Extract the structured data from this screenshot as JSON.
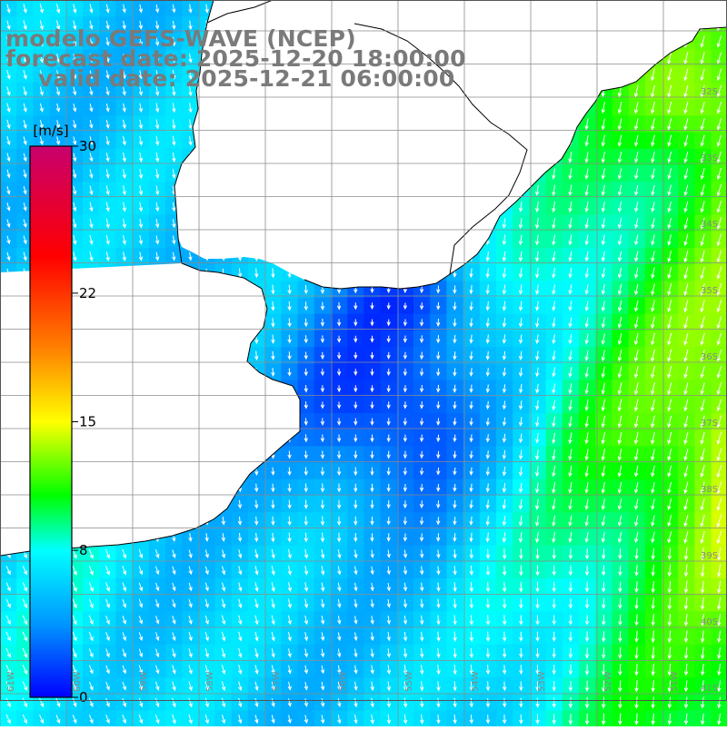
{
  "titles": {
    "model": "modelo GEFS-WAVE (NCEP)",
    "forecast": "forecast date: 2025-12-20 18:00:00",
    "valid": "valid date: 2025-12-21 06:00:00"
  },
  "colorbar": {
    "unit": "[m/s]",
    "min": 0,
    "max": 30,
    "ticks": [
      "30",
      "22",
      "15",
      "8",
      "0"
    ],
    "tick_values": [
      30,
      22,
      15,
      8,
      0
    ],
    "color_stops": [
      {
        "value": 0,
        "color": "#0000ff"
      },
      {
        "value": 4,
        "color": "#0096ff"
      },
      {
        "value": 8,
        "color": "#00ffff"
      },
      {
        "value": 11,
        "color": "#00ff00"
      },
      {
        "value": 15,
        "color": "#ffff00"
      },
      {
        "value": 19,
        "color": "#ff8000"
      },
      {
        "value": 24,
        "color": "#ff0000"
      },
      {
        "value": 30,
        "color": "#c8006e"
      }
    ]
  },
  "latitude_labels": [
    "32S",
    "33S",
    "34S",
    "35S",
    "36S",
    "37S",
    "38S",
    "39S",
    "40S",
    "41S"
  ],
  "longitude_labels": [
    "61W",
    "60W",
    "59W",
    "58W",
    "57W",
    "56W",
    "55W",
    "54W",
    "53W",
    "52W",
    "51W"
  ],
  "colors": {
    "land": "#ffffff",
    "grid": "#8c8c8c",
    "coast": "#000000",
    "arrow": "#ffffff",
    "label": "#888888"
  }
}
